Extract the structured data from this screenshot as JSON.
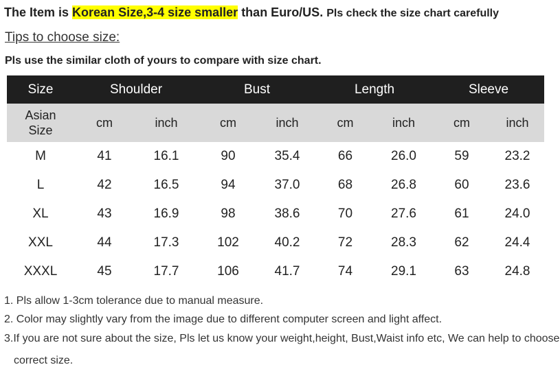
{
  "header": {
    "lead": "The Item is",
    "highlight": "Korean Size,3-4 size smaller",
    "tail": "than Euro/US.",
    "note": "Pls check the size chart carefully"
  },
  "tips": "Tips to choose size:",
  "instruction": "Pls use the similar cloth of yours to compare with size chart.",
  "table": {
    "headers": [
      "Size",
      "Shoulder",
      "Bust",
      "Length",
      "Sleeve"
    ],
    "subheaders": [
      "Asian Size",
      "cm",
      "inch",
      "cm",
      "inch",
      "cm",
      "inch",
      "cm",
      "inch"
    ],
    "rows": [
      [
        "M",
        "41",
        "16.1",
        "90",
        "35.4",
        "66",
        "26.0",
        "59",
        "23.2"
      ],
      [
        "L",
        "42",
        "16.5",
        "94",
        "37.0",
        "68",
        "26.8",
        "60",
        "23.6"
      ],
      [
        "XL",
        "43",
        "16.9",
        "98",
        "38.6",
        "70",
        "27.6",
        "61",
        "24.0"
      ],
      [
        "XXL",
        "44",
        "17.3",
        "102",
        "40.2",
        "72",
        "28.3",
        "62",
        "24.4"
      ],
      [
        "XXXL",
        "45",
        "17.7",
        "106",
        "41.7",
        "74",
        "29.1",
        "63",
        "24.8"
      ]
    ]
  },
  "notes": [
    "1. Pls allow 1-3cm tolerance due to manual measure.",
    "2. Color may slightly vary from the image due to different computer screen and light affect.",
    "3.If you are not sure about the size, Pls let us know your weight,height, Bust,Waist info etc, We can help to choose correct size."
  ]
}
